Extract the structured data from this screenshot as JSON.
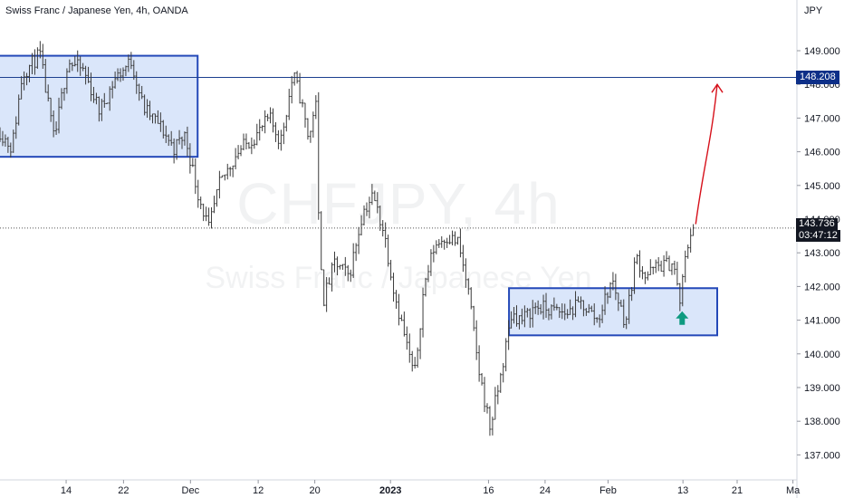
{
  "header": {
    "title": "Swiss Franc / Japanese Yen, 4h, OANDA",
    "currency": "JPY"
  },
  "watermark": {
    "symbol": "CHFJPY, 4h",
    "name": "Swiss Franc / Japanese Yen"
  },
  "colors": {
    "bars": "#3a3a3a",
    "zone_fill": "#bbd2f5",
    "zone_border": "#2348b8",
    "level_line": "#1c3f8f",
    "level_label_bg": "#0d2f88",
    "price_label_bg": "#131722",
    "projection": "#d6101a",
    "signal_arrow": "#0e9a80"
  },
  "chart_data": {
    "type": "ohlc",
    "symbol": "CHFJPY",
    "timeframe": "4h",
    "y_axis": {
      "side": "right",
      "ylim": [
        136.45,
        149.8
      ],
      "ticks": [
        149.0,
        148.0,
        147.0,
        146.0,
        145.0,
        144.0,
        143.0,
        142.0,
        141.0,
        140.0,
        139.0,
        138.0,
        137.0
      ],
      "tick_labels": [
        "149.000",
        "148.000",
        "147.000",
        "146.000",
        "145.000",
        "144.000",
        "143.000",
        "142.000",
        "141.000",
        "140.000",
        "139.000",
        "138.000",
        "137.000"
      ]
    },
    "x_axis": {
      "ticks": [
        {
          "label": "14",
          "x": 0.083,
          "bold": false
        },
        {
          "label": "22",
          "x": 0.155,
          "bold": false
        },
        {
          "label": "Dec",
          "x": 0.239,
          "bold": false
        },
        {
          "label": "12",
          "x": 0.324,
          "bold": false
        },
        {
          "label": "20",
          "x": 0.395,
          "bold": false
        },
        {
          "label": "2023",
          "x": 0.49,
          "bold": true
        },
        {
          "label": "16",
          "x": 0.613,
          "bold": false
        },
        {
          "label": "24",
          "x": 0.684,
          "bold": false
        },
        {
          "label": "Feb",
          "x": 0.763,
          "bold": false
        },
        {
          "label": "13",
          "x": 0.857,
          "bold": false
        },
        {
          "label": "21",
          "x": 0.925,
          "bold": false
        },
        {
          "label": "Ma",
          "x": 0.995,
          "bold": false
        }
      ]
    },
    "anchors": [
      [
        0.0,
        146.6
      ],
      [
        0.015,
        146.1
      ],
      [
        0.028,
        148.3
      ],
      [
        0.05,
        148.9
      ],
      [
        0.068,
        146.3
      ],
      [
        0.085,
        148.7
      ],
      [
        0.105,
        148.4
      ],
      [
        0.125,
        147.2
      ],
      [
        0.145,
        148.2
      ],
      [
        0.165,
        148.7
      ],
      [
        0.18,
        147.3
      ],
      [
        0.2,
        146.8
      ],
      [
        0.218,
        146.1
      ],
      [
        0.232,
        146.5
      ],
      [
        0.248,
        144.8
      ],
      [
        0.262,
        143.7
      ],
      [
        0.275,
        145.0
      ],
      [
        0.298,
        146.0
      ],
      [
        0.322,
        146.5
      ],
      [
        0.338,
        147.0
      ],
      [
        0.352,
        146.3
      ],
      [
        0.368,
        148.3
      ],
      [
        0.378,
        147.5
      ],
      [
        0.388,
        146.3
      ],
      [
        0.396,
        147.7
      ],
      [
        0.4,
        143.8
      ],
      [
        0.406,
        141.6
      ],
      [
        0.42,
        142.7
      ],
      [
        0.438,
        142.3
      ],
      [
        0.455,
        144.2
      ],
      [
        0.468,
        144.7
      ],
      [
        0.482,
        143.6
      ],
      [
        0.495,
        141.8
      ],
      [
        0.508,
        140.5
      ],
      [
        0.52,
        139.3
      ],
      [
        0.532,
        142.0
      ],
      [
        0.545,
        143.2
      ],
      [
        0.56,
        143.5
      ],
      [
        0.575,
        143.3
      ],
      [
        0.588,
        141.8
      ],
      [
        0.6,
        139.6
      ],
      [
        0.615,
        137.8
      ],
      [
        0.628,
        139.3
      ],
      [
        0.642,
        141.2
      ],
      [
        0.655,
        141.0
      ],
      [
        0.672,
        141.4
      ],
      [
        0.69,
        141.3
      ],
      [
        0.71,
        141.2
      ],
      [
        0.73,
        141.5
      ],
      [
        0.75,
        141.0
      ],
      [
        0.768,
        142.2
      ],
      [
        0.785,
        140.9
      ],
      [
        0.798,
        142.9
      ],
      [
        0.81,
        142.3
      ],
      [
        0.825,
        142.6
      ],
      [
        0.845,
        142.7
      ],
      [
        0.853,
        141.5
      ],
      [
        0.86,
        142.8
      ],
      [
        0.866,
        143.6
      ],
      [
        0.87,
        143.736
      ]
    ],
    "bar_count": 260,
    "last_bar_x": 0.87,
    "zones": [
      {
        "name": "upper resistance zone",
        "x0": 0.0,
        "x1": 0.248,
        "y_top": 148.85,
        "y_bottom": 145.85
      },
      {
        "name": "lower support zone",
        "x0": 0.641,
        "x1": 0.9,
        "y_top": 141.95,
        "y_bottom": 140.55
      }
    ],
    "levels": [
      {
        "name": "target level",
        "value": 148.208,
        "label": "148.208"
      }
    ],
    "last_price": {
      "value": 143.736,
      "label": "143.736",
      "countdown": "03:47:12"
    },
    "annotations": [
      {
        "name": "projection arrow",
        "from": [
          0.873,
          143.85
        ],
        "to": [
          0.9,
          148.0
        ]
      },
      {
        "name": "buy signal arrow",
        "x": 0.856,
        "y": 141.05,
        "direction": "up"
      }
    ]
  }
}
